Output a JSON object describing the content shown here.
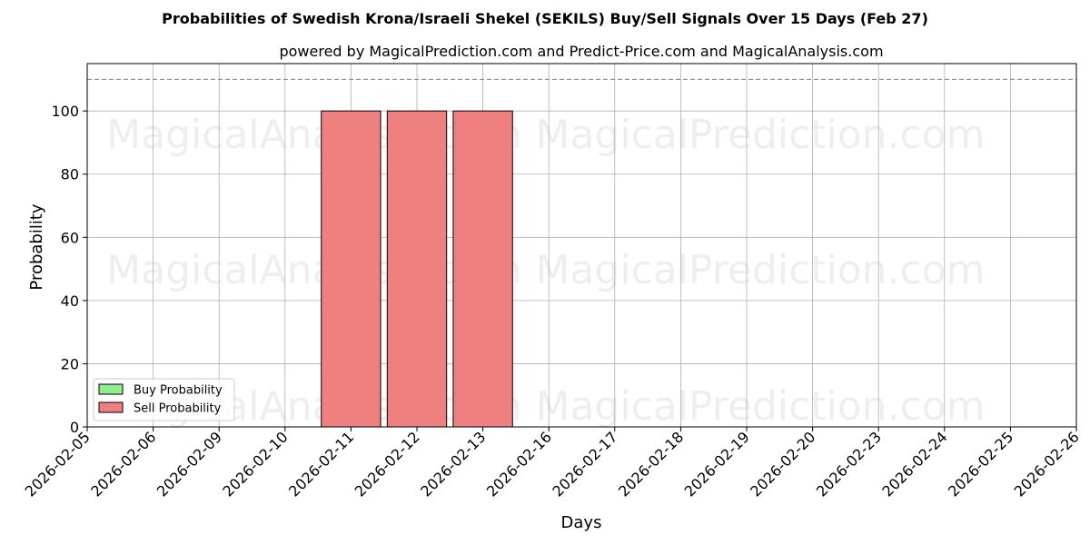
{
  "chart_data": {
    "type": "bar",
    "title": "Probabilities of Swedish Krona/Israeli Shekel (SEKILS) Buy/Sell Signals Over 15 Days (Feb 27)",
    "subtitle": "powered by MagicalPrediction.com and Predict-Price.com and MagicalAnalysis.com",
    "xlabel": "Days",
    "ylabel": "Probability",
    "x": [
      "2026-02-05",
      "2026-02-06",
      "2026-02-09",
      "2026-02-10",
      "2026-02-11",
      "2026-02-12",
      "2026-02-13",
      "2026-02-16",
      "2026-02-17",
      "2026-02-18",
      "2026-02-19",
      "2026-02-20",
      "2026-02-23",
      "2026-02-24",
      "2026-02-25",
      "2026-02-26"
    ],
    "yticks": [
      0,
      20,
      40,
      60,
      80,
      100
    ],
    "ylim": [
      0,
      115
    ],
    "reference_line": 110,
    "grid": true,
    "legend_position": "lower-left",
    "series": [
      {
        "name": "Buy Probability",
        "color": "#90ee90",
        "values": [
          0,
          0,
          0,
          0,
          0,
          0,
          0,
          0,
          0,
          0,
          0,
          0,
          0,
          0,
          0,
          0
        ]
      },
      {
        "name": "Sell Probability",
        "color": "#f08080",
        "values": [
          0,
          0,
          0,
          0,
          100,
          100,
          100,
          0,
          0,
          0,
          0,
          0,
          0,
          0,
          0,
          0
        ]
      }
    ]
  },
  "watermarks": [
    "MagicalAnalysis.com",
    "MagicalPrediction.com"
  ]
}
